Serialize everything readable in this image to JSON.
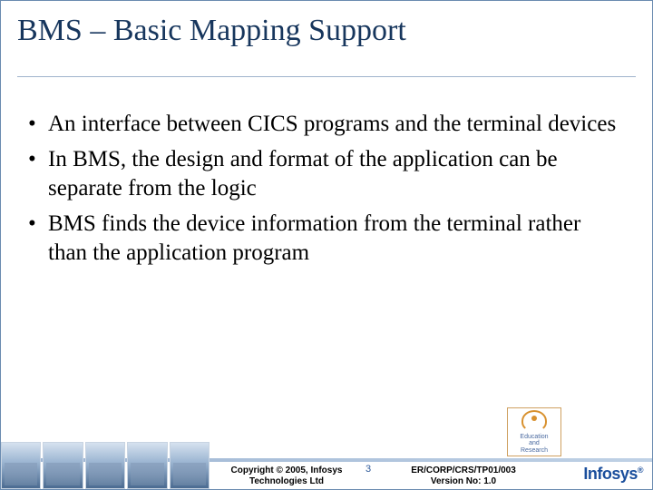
{
  "title": "BMS – Basic Mapping Support",
  "title_color": "#17365d",
  "title_fontsize": 34,
  "body_fontsize": 25,
  "bullets": [
    "An interface between CICS programs and the terminal devices",
    "In BMS, the design and format of the application can be separate from the logic",
    "BMS finds the device information from the terminal rather than the application program"
  ],
  "footer": {
    "copyright_line1": "Copyright © 2005, Infosys",
    "copyright_line2": "Technologies Ltd",
    "page_number": "3",
    "docref_line1": "ER/CORP/CRS/TP01/003",
    "docref_line2": "Version No: 1.0",
    "company_logo_text": "Infosys",
    "edu_logo_line1": "Education",
    "edu_logo_line2": "and",
    "edu_logo_line3": "Research"
  },
  "colors": {
    "border": "#6a8bb0",
    "text": "#000000",
    "accent": "#1a4e9c",
    "background": "#ffffff"
  }
}
